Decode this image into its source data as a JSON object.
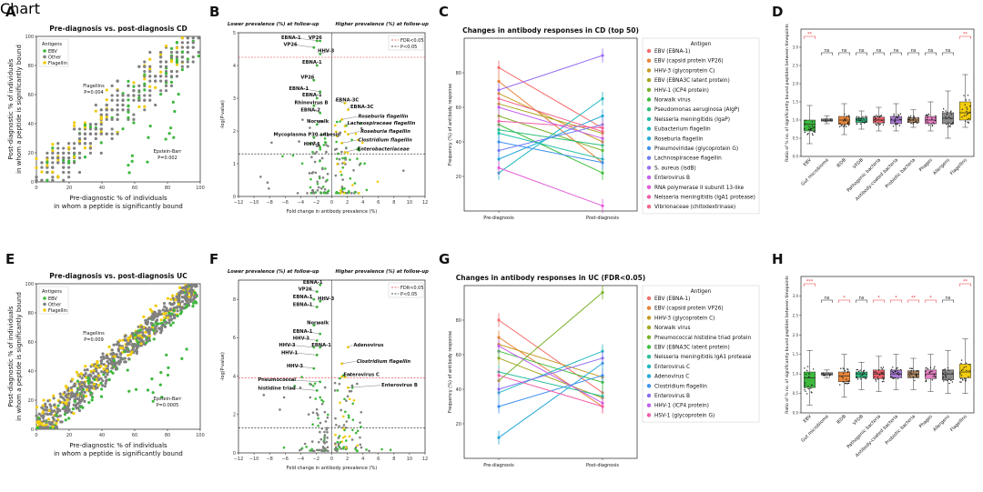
{
  "colors": {
    "ebv": "#3db83d",
    "other": "#808080",
    "flagellin": "#f2cc0c",
    "fdr_line": "#e8353b",
    "p_line": "#111111",
    "sig_red": "#e8353b"
  },
  "chart_data": [
    {
      "panel": "A",
      "type": "scatter",
      "title": "Pre-diagnosis vs. post-diagnosis CD",
      "xlabel_lines": [
        "Pre-diagnostic % of individuals",
        "in whom a peptide is significantly bound"
      ],
      "ylabel_lines": [
        "Post-diagnostic % of individuals",
        "in whom a peptide is significantly bound"
      ],
      "xlim": [
        0,
        100
      ],
      "ylim": [
        0,
        100
      ],
      "xticks": [
        "0",
        "20",
        "40",
        "60",
        "80",
        "100"
      ],
      "yticks": [
        "0",
        "20",
        "40",
        "60",
        "80",
        "100"
      ],
      "legend_title": "Antigens",
      "legend": [
        "EBV",
        "Other",
        "Flagellin"
      ],
      "annotations": [
        {
          "lines": [
            "Flagellins",
            "P=0.004"
          ],
          "at": [
            35,
            65
          ]
        },
        {
          "lines": [
            "Epstein-Barr",
            "P=0.002"
          ],
          "at": [
            80,
            20
          ]
        }
      ]
    },
    {
      "panel": "B",
      "type": "scatter",
      "title_left": "Lower prevalence (%) at follow-up",
      "title_right": "Higher prevalence (%) at follow-up",
      "xlabel": "Fold change in antibody prevalence (%)",
      "ylabel": "-log(P-value)",
      "xlim": [
        -12,
        12
      ],
      "ylim": [
        0,
        5
      ],
      "xticks": [
        "−12",
        "−10",
        "−8",
        "−6",
        "−4",
        "−2",
        "0",
        "2",
        "4",
        "6",
        "8",
        "10",
        "12"
      ],
      "yticks": [
        "0",
        "1",
        "2",
        "3",
        "4",
        "5"
      ],
      "fdr_threshold": 4.25,
      "p_threshold": 1.3,
      "legend": [
        "FDR<0.05",
        "P<0.05"
      ],
      "labels": [
        {
          "text": "EBNA-1",
          "x": -6.5,
          "y": 4.8,
          "italic": false
        },
        {
          "text": "VP26",
          "x": -3.0,
          "y": 4.8,
          "italic": false
        },
        {
          "text": "VP26",
          "x": -6.2,
          "y": 4.6,
          "italic": false
        },
        {
          "text": "HHV-3",
          "x": -1.8,
          "y": 4.4,
          "italic": false
        },
        {
          "text": "EBNA-1",
          "x": -3.8,
          "y": 4.05,
          "italic": false
        },
        {
          "text": "VP26",
          "x": -4.0,
          "y": 3.6,
          "italic": false
        },
        {
          "text": "EBNA-1",
          "x": -5.5,
          "y": 3.25,
          "italic": false
        },
        {
          "text": "EBNA-1",
          "x": -3.8,
          "y": 3.05,
          "italic": false
        },
        {
          "text": "Rhinovirus B",
          "x": -4.8,
          "y": 2.82,
          "italic": false
        },
        {
          "text": "EBNA-2",
          "x": -4.0,
          "y": 2.6,
          "italic": false
        },
        {
          "text": "Norwalk",
          "x": -3.2,
          "y": 2.25,
          "italic": false
        },
        {
          "text": "Mycoplasma P30 adhesin",
          "x": -7.5,
          "y": 1.85,
          "italic": false
        },
        {
          "text": "HHV-1",
          "x": -3.6,
          "y": 1.55,
          "italic": false
        },
        {
          "text": "EBNA-3C",
          "x": 0.5,
          "y": 2.9,
          "italic": false
        },
        {
          "text": "EBNA-3C",
          "x": 2.4,
          "y": 2.7,
          "italic": false
        },
        {
          "text": "Roseburia flagellin",
          "x": 3.4,
          "y": 2.4,
          "italic": true
        },
        {
          "text": "Lachnospiraceae flagellin",
          "x": 2.0,
          "y": 2.2,
          "italic": true
        },
        {
          "text": "Roseburia flagellin",
          "x": 3.7,
          "y": 1.95,
          "italic": true
        },
        {
          "text": "Clostridium flagellin",
          "x": 3.4,
          "y": 1.68,
          "italic": true
        },
        {
          "text": "Enterobacteriaceae",
          "x": 3.3,
          "y": 1.4,
          "italic": true
        }
      ]
    },
    {
      "panel": "C",
      "type": "line",
      "title": "Changes in antibody responses in CD (top 50)",
      "ylabel": "Frequency (%) of antibody response",
      "categories": [
        "Pre-diagnosis",
        "Post-diagnosis"
      ],
      "ylim": [
        0,
        100
      ],
      "yticks": [
        "20",
        "40",
        "60",
        "80"
      ],
      "legend_title": "Antigen",
      "series": [
        {
          "name": "EBV (EBNA-1)",
          "values": [
            83,
            48
          ],
          "color": "#f76c6c"
        },
        {
          "name": "EBV (capsid protein VP26)",
          "values": [
            75,
            28
          ],
          "color": "#e8823a"
        },
        {
          "name": "HHV-3 (glycoprotein C)",
          "values": [
            68,
            40
          ],
          "color": "#c79a1f"
        },
        {
          "name": "EBV (EBNA3C latent protein)",
          "values": [
            62,
            45
          ],
          "color": "#a8a520"
        },
        {
          "name": "HHV-1 (ICP4 protein)",
          "values": [
            55,
            35
          ],
          "color": "#7cb22a"
        },
        {
          "name": "Norwalk virus",
          "values": [
            50,
            22
          ],
          "color": "#3fbf3f"
        },
        {
          "name": "Pseudomonas aeruginosa (AlgP)",
          "values": [
            47,
            38
          ],
          "color": "#2bbf78"
        },
        {
          "name": "Neisseria meningitidis (IgaP)",
          "values": [
            45,
            30
          ],
          "color": "#20bfa3"
        },
        {
          "name": "Eubacterium flagellin",
          "values": [
            22,
            65
          ],
          "color": "#1fb8c1"
        },
        {
          "name": "Roseburia flagellin",
          "values": [
            30,
            55
          ],
          "color": "#26a9d9"
        },
        {
          "name": "Pneumoviridae (glycoprotein G)",
          "values": [
            40,
            28
          ],
          "color": "#3d8ff0"
        },
        {
          "name": "Lachnospiraceae flagellin",
          "values": [
            35,
            50
          ],
          "color": "#6f7cf5"
        },
        {
          "name": "S. aureus (isdB)",
          "values": [
            70,
            90
          ],
          "color": "#9a6cf5"
        },
        {
          "name": "Enterovirus B",
          "values": [
            60,
            42
          ],
          "color": "#c35ef0"
        },
        {
          "name": "RNA polymerase II subunit 13-like",
          "values": [
            25,
            3
          ],
          "color": "#e45ad9"
        },
        {
          "name": "Neisseria meningitidis (IgA1 protease)",
          "values": [
            52,
            48
          ],
          "color": "#f25ca8"
        },
        {
          "name": "Vibrionaceae (chitodextrinase)",
          "values": [
            65,
            46
          ],
          "color": "#f5658a"
        }
      ]
    },
    {
      "panel": "D",
      "type": "box",
      "ylabel": "Ratio of % no. of significantly bound peptides between timepoints",
      "ylim": [
        0,
        3.5
      ],
      "yticks": [
        "0.0",
        "0.5",
        "1.0",
        "1.5",
        "2.0",
        "2.5",
        "3.0"
      ],
      "categories": [
        "EBV",
        "Gut microbiome",
        "IEDB",
        "VFDB",
        "Pathogenic bacteria",
        "Antibody-coated bacteria",
        "Probiotic bacteria",
        "Phages",
        "Allergens",
        "Flagellins"
      ],
      "box_colors": [
        "#3db83d",
        "#9a9a9a",
        "#e8853a",
        "#2bbf7e",
        "#e8606a",
        "#a97ad6",
        "#b58a64",
        "#e87fc2",
        "#8a8a8a",
        "#f2cc0c"
      ],
      "medians": [
        0.88,
        1.0,
        1.0,
        1.0,
        1.0,
        1.0,
        1.0,
        1.0,
        1.05,
        1.2
      ],
      "q1": [
        0.7,
        0.97,
        0.88,
        0.93,
        0.92,
        0.9,
        0.93,
        0.9,
        0.9,
        1.0
      ],
      "q3": [
        1.0,
        1.03,
        1.1,
        1.06,
        1.08,
        1.1,
        1.06,
        1.1,
        1.2,
        1.5
      ],
      "whisker_low": [
        0.35,
        0.9,
        0.6,
        0.75,
        0.7,
        0.7,
        0.8,
        0.7,
        0.5,
        0.8
      ],
      "whisker_high": [
        1.4,
        1.12,
        1.45,
        1.25,
        1.35,
        1.45,
        1.28,
        1.5,
        1.8,
        2.25
      ],
      "sig_labels": [
        "**",
        "ns",
        "ns",
        "ns",
        "ns",
        "ns",
        "ns",
        "ns",
        "ns",
        "**"
      ],
      "sig_red": [
        true,
        false,
        false,
        false,
        false,
        false,
        false,
        false,
        false,
        true
      ]
    },
    {
      "panel": "E",
      "type": "scatter",
      "title": "Pre-diagnosis vs. post-diagnosis UC",
      "xlabel_lines": [
        "Pre-diagnostic % of individuals",
        "in whom a peptide is significantly bound"
      ],
      "ylabel_lines": [
        "Post-diagnostic % of individuals",
        "in whom a peptide is significantly bound"
      ],
      "xlim": [
        0,
        100
      ],
      "ylim": [
        0,
        100
      ],
      "xticks": [
        "0",
        "20",
        "40",
        "60",
        "80",
        "100"
      ],
      "yticks": [
        "0",
        "20",
        "40",
        "60",
        "80",
        "100"
      ],
      "legend_title": "Antigens",
      "legend": [
        "EBV",
        "Other",
        "Flagellin"
      ],
      "annotations": [
        {
          "lines": [
            "Flagellins",
            "P=0.009"
          ],
          "at": [
            35,
            65
          ]
        },
        {
          "lines": [
            "Epstein-Barr",
            "P=0.0005"
          ],
          "at": [
            80,
            20
          ]
        }
      ]
    },
    {
      "panel": "F",
      "type": "scatter",
      "title_left": "Lower prevalence (%) at follow-up",
      "title_right": "Higher prevalence (%) at follow-up",
      "xlabel": "Fold change in antibody prevalence (%)",
      "ylabel": "-log(P-value)",
      "xlim": [
        -12,
        12
      ],
      "ylim": [
        0,
        9
      ],
      "xticks": [
        "−12",
        "−10",
        "−8",
        "−6",
        "−4",
        "−2",
        "0",
        "2",
        "4",
        "6",
        "8",
        "10",
        "12"
      ],
      "yticks": [
        "0",
        "2",
        "4",
        "6",
        "8"
      ],
      "fdr_threshold": 3.9,
      "p_threshold": 1.3,
      "legend": [
        "FDR<0.05",
        "P<0.05"
      ],
      "labels": [
        {
          "text": "EBNA-1",
          "x": -3.7,
          "y": 8.8,
          "italic": false
        },
        {
          "text": "VP26",
          "x": -4.3,
          "y": 8.45,
          "italic": false
        },
        {
          "text": "EBNA-1",
          "x": -5.0,
          "y": 8.05,
          "italic": false
        },
        {
          "text": "HHV-3",
          "x": -1.8,
          "y": 7.95,
          "italic": false
        },
        {
          "text": "EBNA-1",
          "x": -5.0,
          "y": 7.65,
          "italic": false
        },
        {
          "text": "Norwalk",
          "x": -3.2,
          "y": 6.7,
          "italic": false
        },
        {
          "text": "EBNA-1",
          "x": -5.0,
          "y": 6.25,
          "italic": false
        },
        {
          "text": "HHV-3",
          "x": -5.0,
          "y": 5.9,
          "italic": false
        },
        {
          "text": "HHV-3",
          "x": -6.8,
          "y": 5.55,
          "italic": false
        },
        {
          "text": "EBNA-1",
          "x": -2.6,
          "y": 5.55,
          "italic": false
        },
        {
          "text": "HHV-1",
          "x": -6.5,
          "y": 5.15,
          "italic": false
        },
        {
          "text": "HHV-3",
          "x": -5.8,
          "y": 4.45,
          "italic": false
        },
        {
          "text": "Pneumococcal",
          "x": -9.5,
          "y": 3.75,
          "italic": false
        },
        {
          "text": "histidine triad",
          "x": -9.5,
          "y": 3.3,
          "italic": false
        },
        {
          "text": "Adenovirus",
          "x": 2.8,
          "y": 5.55,
          "italic": false
        },
        {
          "text": "Clostridium flagellin",
          "x": 3.2,
          "y": 4.7,
          "italic": true
        },
        {
          "text": "Enterovirus C",
          "x": 1.5,
          "y": 4.0,
          "italic": false
        },
        {
          "text": "Enterovirus B",
          "x": 6.4,
          "y": 3.45,
          "italic": false
        }
      ]
    },
    {
      "panel": "G",
      "type": "line",
      "title": "Changes in antibody responses in UC (FDR<0.05)",
      "ylabel": "Frequency (%) of antibody response",
      "categories": [
        "Pre-diagnosis",
        "Post-diagnosis"
      ],
      "ylim": [
        0,
        100
      ],
      "yticks": [
        "20",
        "40",
        "60",
        "80"
      ],
      "legend_title": "Antigen",
      "series": [
        {
          "name": "EBV (EBNA-1)",
          "values": [
            80,
            38
          ],
          "color": "#f76c6c"
        },
        {
          "name": "EBV (capsid protein VP26)",
          "values": [
            70,
            30
          ],
          "color": "#e8823a"
        },
        {
          "name": "HHV-3 (glycoprotein C)",
          "values": [
            66,
            47
          ],
          "color": "#c79a1f"
        },
        {
          "name": "Norwalk virus",
          "values": [
            58,
            35
          ],
          "color": "#a8a520"
        },
        {
          "name": "Pneumococcal histidine triad protein",
          "values": [
            45,
            96
          ],
          "color": "#7cb22a"
        },
        {
          "name": "EBV (EBNA3C latent protein)",
          "values": [
            62,
            44
          ],
          "color": "#3fbf3f"
        },
        {
          "name": "Neisseria meningitidis IgA1 protease",
          "values": [
            50,
            36
          ],
          "color": "#2bbf9a"
        },
        {
          "name": "Enterovirus C",
          "values": [
            38,
            62
          ],
          "color": "#20b8c1"
        },
        {
          "name": "Adenovirus C",
          "values": [
            12,
            55
          ],
          "color": "#26a9d9"
        },
        {
          "name": "Clostridium flagellin",
          "values": [
            30,
            48
          ],
          "color": "#3d8ff0"
        },
        {
          "name": "Enterovirus B",
          "values": [
            40,
            58
          ],
          "color": "#8a6cf5"
        },
        {
          "name": "HHV-1 (ICP4 protein)",
          "values": [
            65,
            32
          ],
          "color": "#c35ef0"
        },
        {
          "name": "HSV-1 (glycoprotein G)",
          "values": [
            48,
            30
          ],
          "color": "#f25ca8"
        }
      ]
    },
    {
      "panel": "H",
      "type": "box",
      "ylabel": "Ratio of % no. of significantly bound peptides between timepoints",
      "ylim": [
        0,
        3.5
      ],
      "yticks": [
        "0.0",
        "0.5",
        "1.0",
        "1.5",
        "2.0",
        "2.5",
        "3.0"
      ],
      "categories": [
        "EBV",
        "Gut microbiome",
        "IEDB",
        "VFDB",
        "Pathogenic bacteria",
        "Antibody-coated bacteria",
        "Probiotic bacteria",
        "Phages",
        "Allergens",
        "Flagellins"
      ],
      "box_colors": [
        "#3db83d",
        "#9a9a9a",
        "#e8853a",
        "#2bbf7e",
        "#e8606a",
        "#a97ad6",
        "#b58a64",
        "#e87fc2",
        "#8a8a8a",
        "#f2cc0c"
      ],
      "medians": [
        0.9,
        1.0,
        0.95,
        1.0,
        1.0,
        1.0,
        1.0,
        1.0,
        1.0,
        1.05
      ],
      "q1": [
        0.65,
        0.97,
        0.8,
        0.9,
        0.88,
        0.9,
        0.9,
        0.88,
        0.85,
        0.9
      ],
      "q3": [
        1.05,
        1.03,
        1.05,
        1.05,
        1.1,
        1.1,
        1.08,
        1.1,
        1.1,
        1.25
      ],
      "whisker_low": [
        0.2,
        0.9,
        0.4,
        0.6,
        0.55,
        0.6,
        0.6,
        0.55,
        0.5,
        0.5
      ],
      "whisker_high": [
        1.6,
        1.1,
        1.5,
        1.3,
        1.45,
        1.5,
        1.4,
        1.5,
        1.6,
        1.9
      ],
      "sig_labels": [
        "***",
        "ns",
        "*",
        "ns",
        "*",
        "*",
        "**",
        "*",
        "ns",
        "**"
      ],
      "sig_red": [
        true,
        false,
        true,
        false,
        true,
        true,
        true,
        true,
        false,
        true
      ]
    }
  ]
}
